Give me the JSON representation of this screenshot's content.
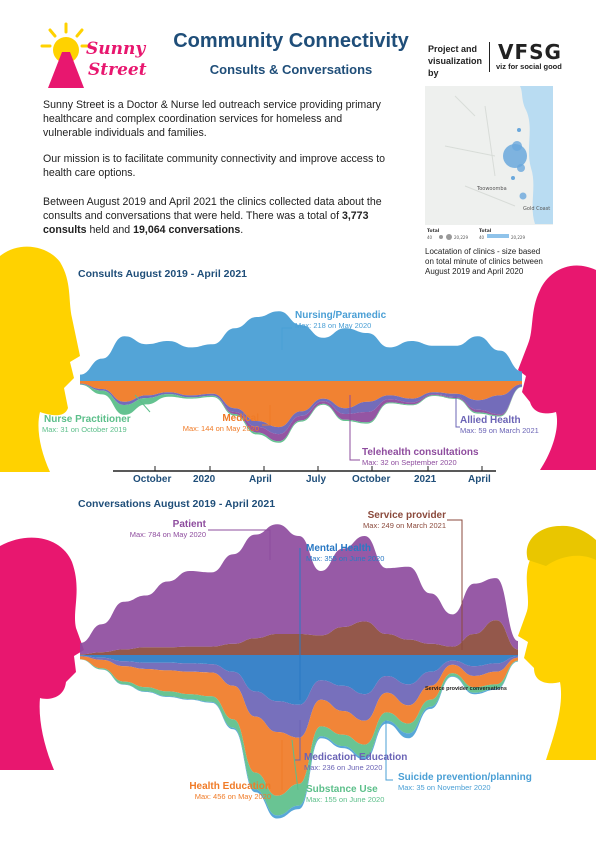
{
  "header": {
    "title": "Community Connectivity",
    "subtitle": "Consults & Conversations",
    "logo_text_1": "Sunny",
    "logo_text_2": "Street",
    "credit_line_1": "Project and",
    "credit_line_2": "visualization by",
    "vfsg_logo_text": "VFSG",
    "vfsg_tagline": "viz for social good"
  },
  "intro": {
    "p1": "Sunny Street is a Doctor & Nurse led outreach service providing primary healthcare and complex coordination services for homeless and vulnerable individuals and families.",
    "p2": "Our mission is to facilitate community connectivity and improve access to health care options.",
    "p3_a": "Between August 2019 and April 2021 the clinics collected data about the consults and conversations that were held.  There was a total of ",
    "p3_consults": "3,773 consults",
    "p3_b": " held and ",
    "p3_conversations": "19,064 conversations",
    "p3_c": "."
  },
  "map": {
    "caption": "Locatation of clinics - size based on total minute of clinics between August 2019 and April 2020",
    "legend_total_1": "Total",
    "legend_total_2": "Total",
    "legend_min_1": "40",
    "legend_max_1": "20,229",
    "legend_min_2": "40",
    "legend_max_2": "20,229",
    "place_label_1": "Toowoomba",
    "place_label_2": "Gold Coast"
  },
  "colors": {
    "brand_blue": "#1f4e79",
    "nursing": "#4a9fd5",
    "medical": "#f07b27",
    "nurse_practitioner": "#5cbf8a",
    "allied": "#6b64b6",
    "telehealth": "#8e4c9e",
    "patient": "#8e4c9e",
    "service_provider": "#8b4a3c",
    "mental_health": "#2a79c4",
    "medication": "#6b64b6",
    "health_education": "#f07b27",
    "substance": "#5cbf8a",
    "suicide": "#4a9fd5",
    "silhouette_yellow": "#ffd200",
    "silhouette_pink": "#e8176f"
  },
  "chart_data": [
    {
      "type": "area",
      "title": "Consults August 2019 - April 2021",
      "x": [
        "2019-08",
        "2019-09",
        "2019-10",
        "2019-11",
        "2019-12",
        "2020-01",
        "2020-02",
        "2020-03",
        "2020-04",
        "2020-05",
        "2020-06",
        "2020-07",
        "2020-08",
        "2020-09",
        "2020-10",
        "2020-11",
        "2020-12",
        "2021-01",
        "2021-02",
        "2021-03",
        "2021-04"
      ],
      "x_tick_labels": [
        "October",
        "2020",
        "April",
        "July",
        "October",
        "2021",
        "April"
      ],
      "series": [
        {
          "name": "Nursing/Paramedic",
          "annotation": "Max: 218 on May 2020",
          "values": [
            20,
            70,
            140,
            115,
            125,
            105,
            115,
            165,
            200,
            218,
            175,
            135,
            165,
            150,
            105,
            125,
            110,
            110,
            140,
            95,
            30
          ]
        },
        {
          "name": "Medical",
          "annotation": "Max: 144 on May 2020",
          "values": [
            8,
            25,
            65,
            45,
            35,
            45,
            40,
            85,
            125,
            144,
            95,
            55,
            85,
            65,
            45,
            55,
            35,
            40,
            60,
            45,
            10
          ]
        },
        {
          "name": "Nurse Practitioner",
          "annotation": "Max: 31 on October 2019",
          "values": [
            2,
            12,
            31,
            20,
            8,
            4,
            4,
            5,
            6,
            5,
            4,
            3,
            4,
            4,
            3,
            3,
            3,
            3,
            4,
            3,
            1
          ]
        },
        {
          "name": "Telehealth consultations",
          "annotation": "Max: 32 on September 2020",
          "values": [
            0,
            0,
            0,
            0,
            0,
            0,
            0,
            6,
            18,
            22,
            14,
            8,
            18,
            32,
            10,
            6,
            3,
            3,
            8,
            4,
            0
          ]
        },
        {
          "name": "Allied Health",
          "annotation": "Max: 59 on March 2021",
          "values": [
            2,
            5,
            10,
            8,
            6,
            6,
            6,
            12,
            18,
            22,
            14,
            8,
            18,
            32,
            12,
            12,
            6,
            10,
            30,
            59,
            8
          ]
        }
      ]
    },
    {
      "type": "area",
      "title": "Conversations August 2019 - April 2021",
      "x": [
        "2019-08",
        "2019-09",
        "2019-10",
        "2019-11",
        "2019-12",
        "2020-01",
        "2020-02",
        "2020-03",
        "2020-04",
        "2020-05",
        "2020-06",
        "2020-07",
        "2020-08",
        "2020-09",
        "2020-10",
        "2020-11",
        "2020-12",
        "2021-01",
        "2021-02",
        "2021-03",
        "2021-04"
      ],
      "series": [
        {
          "name": "Patient",
          "annotation": "Max: 784 on May 2020",
          "values": [
            80,
            200,
            340,
            370,
            470,
            540,
            530,
            640,
            740,
            784,
            700,
            460,
            560,
            610,
            470,
            520,
            360,
            230,
            360,
            300,
            60
          ]
        },
        {
          "name": "Service provider",
          "annotation": "Max: 249 on March 2021",
          "values": [
            5,
            20,
            40,
            55,
            55,
            60,
            60,
            80,
            120,
            150,
            150,
            140,
            200,
            240,
            150,
            110,
            80,
            60,
            150,
            249,
            40
          ]
        },
        {
          "name": "Mental Health",
          "annotation": "Max: 355 on June 2020",
          "values": [
            5,
            20,
            45,
            55,
            55,
            60,
            65,
            120,
            260,
            330,
            355,
            180,
            220,
            280,
            150,
            210,
            120,
            40,
            80,
            60,
            10
          ]
        },
        {
          "name": "Medication Education",
          "annotation": "Max: 236 on June 2020",
          "values": [
            5,
            15,
            35,
            45,
            55,
            60,
            60,
            100,
            180,
            220,
            236,
            140,
            180,
            190,
            120,
            150,
            100,
            30,
            70,
            60,
            10
          ]
        },
        {
          "name": "Health Education",
          "annotation": "Max: 456 on May 2020",
          "values": [
            20,
            60,
            110,
            130,
            150,
            160,
            170,
            240,
            400,
            456,
            330,
            190,
            170,
            170,
            140,
            130,
            100,
            60,
            80,
            90,
            20
          ]
        },
        {
          "name": "Substance Use",
          "annotation": "Max: 155 on June 2020",
          "values": [
            2,
            8,
            20,
            30,
            35,
            35,
            40,
            60,
            120,
            140,
            155,
            70,
            80,
            90,
            60,
            70,
            50,
            20,
            40,
            30,
            5
          ]
        },
        {
          "name": "Suicide prevention/planning",
          "annotation": "Max: 35 on November 2020",
          "values": [
            0,
            1,
            3,
            4,
            5,
            5,
            6,
            10,
            20,
            22,
            25,
            15,
            15,
            18,
            20,
            35,
            15,
            5,
            10,
            8,
            2
          ]
        }
      ],
      "annotation_extra": "Service provider conversations"
    }
  ]
}
